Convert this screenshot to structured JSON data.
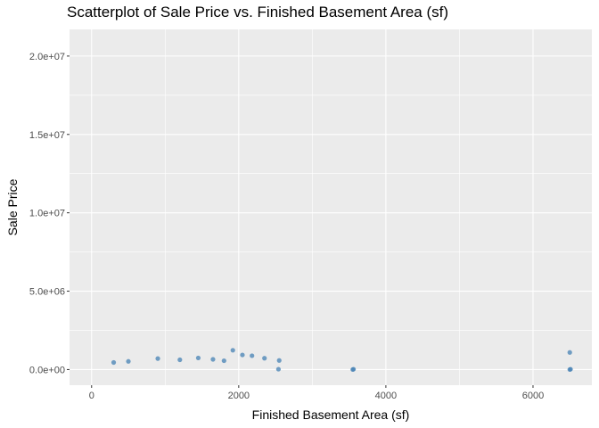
{
  "chart_data": {
    "type": "scatter",
    "title": "Scatterplot of Sale Price vs. Finished Basement Area (sf)",
    "xlabel": "Finished Basement Area (sf)",
    "ylabel": "Sale Price",
    "xlim": [
      -300,
      6800
    ],
    "ylim": [
      -1000000,
      21700000
    ],
    "x_ticks": [
      0,
      2000,
      4000,
      6000
    ],
    "x_tick_labels": [
      "0",
      "2000",
      "4000",
      "6000"
    ],
    "y_ticks": [
      0,
      5000000,
      10000000,
      15000000,
      20000000
    ],
    "y_tick_labels": [
      "0.0e+00",
      "5.0e+06",
      "1.0e+07",
      "1.5e+07",
      "2.0e+07"
    ],
    "grid": true,
    "point_color": "#4682B4",
    "panel_color": "#EBEBEB",
    "points": [
      {
        "x": 1920,
        "y": 1230000
      },
      {
        "x": 2050,
        "y": 930000
      },
      {
        "x": 2180,
        "y": 880000
      },
      {
        "x": 2350,
        "y": 720000
      },
      {
        "x": 2550,
        "y": 580000
      },
      {
        "x": 2540,
        "y": 20000
      },
      {
        "x": 3550,
        "y": 0
      },
      {
        "x": 3560,
        "y": 20000
      },
      {
        "x": 6500,
        "y": 1090000
      },
      {
        "x": 6500,
        "y": 0
      },
      {
        "x": 6510,
        "y": 20000
      },
      {
        "x": 1450,
        "y": 740000
      },
      {
        "x": 1650,
        "y": 650000
      },
      {
        "x": 900,
        "y": 700000
      },
      {
        "x": 1200,
        "y": 620000
      },
      {
        "x": 300,
        "y": 450000
      },
      {
        "x": 500,
        "y": 520000
      },
      {
        "x": 1800,
        "y": 560000
      }
    ]
  }
}
